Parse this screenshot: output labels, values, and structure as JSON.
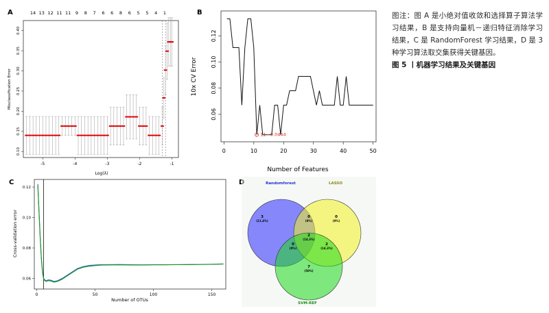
{
  "caption": {
    "text": "图注：图 A 是小绝对值收敛和选择算子算法学习结果，B 是支持向量机－递归特征消除学习结果，C 是 RandomForest 学习结果，D 是 3 种学习算法取交集获得关键基因。",
    "figure_title": "图 5 丨机器学习结果及关键基因"
  },
  "panels": {
    "a": {
      "letter": "A",
      "top_counts": [
        "14",
        "13",
        "12",
        "11",
        "11",
        "9",
        "8",
        "7",
        "6",
        "6",
        "8",
        "6",
        "5",
        "5",
        "4",
        "1"
      ],
      "ylabel": "Misclassification Error",
      "xlabel": "Log(λ)",
      "xticks": [
        "-5",
        "-4",
        "-3",
        "-2",
        "-1"
      ],
      "yticks": [
        "0.10",
        "0.15",
        "0.20",
        "0.25",
        "0.30",
        "0.35",
        "0.40"
      ]
    },
    "b": {
      "letter": "B",
      "ylabel": "10x CV Error",
      "xlabel": "Number of Features",
      "xticks": [
        "0",
        "10",
        "20",
        "30",
        "40",
        "50"
      ],
      "yticks": [
        "0.06",
        "0.08",
        "0.10",
        "0.12"
      ],
      "annotation": "11 - 0.0444"
    },
    "c": {
      "letter": "C",
      "ylabel": "Cross-validation error",
      "xlabel": "Number of OTUs",
      "xticks": [
        "0",
        "50",
        "100",
        "150"
      ],
      "yticks": [
        "0.06",
        "0.08",
        "0.10",
        "0.12"
      ]
    },
    "d": {
      "letter": "D",
      "sets": [
        "Randomforest",
        "LASSO",
        "SVM-REF"
      ],
      "set_colors": [
        "#1f2fd0",
        "#9a9a10",
        "#1aa01a"
      ],
      "regions": [
        {
          "count": "3",
          "pct": "(21.4%)"
        },
        {
          "count": "0",
          "pct": "(0%)"
        },
        {
          "count": "0",
          "pct": "(0%)"
        },
        {
          "count": "2",
          "pct": "(14.3%)"
        },
        {
          "count": "0",
          "pct": "(0%)"
        },
        {
          "count": "2",
          "pct": "(14.3%)"
        },
        {
          "count": "7",
          "pct": "(50%)"
        }
      ]
    }
  },
  "chart_data": [
    {
      "type": "scatter",
      "panel": "A",
      "xlabel": "Log(λ)",
      "ylabel": "Misclassification Error",
      "xlim": [
        -5.6,
        -0.8
      ],
      "ylim": [
        0.085,
        0.425
      ],
      "x": [
        -5.5,
        -5.4,
        -5.3,
        -5.2,
        -5.1,
        -5.0,
        -4.9,
        -4.8,
        -4.7,
        -4.6,
        -4.5,
        -4.4,
        -4.3,
        -4.2,
        -4.1,
        -4.0,
        -3.9,
        -3.8,
        -3.7,
        -3.6,
        -3.5,
        -3.4,
        -3.3,
        -3.2,
        -3.1,
        -3.0,
        -2.9,
        -2.8,
        -2.7,
        -2.6,
        -2.5,
        -2.4,
        -2.3,
        -2.2,
        -2.1,
        -2.0,
        -1.9,
        -1.8,
        -1.7,
        -1.6,
        -1.5,
        -1.4,
        -1.3,
        -1.25,
        -1.2,
        -1.15,
        -1.1,
        -1.05,
        -1.0
      ],
      "y": [
        0.14,
        0.14,
        0.14,
        0.14,
        0.14,
        0.14,
        0.14,
        0.14,
        0.14,
        0.14,
        0.14,
        0.163,
        0.163,
        0.163,
        0.163,
        0.163,
        0.14,
        0.14,
        0.14,
        0.14,
        0.14,
        0.14,
        0.14,
        0.14,
        0.14,
        0.14,
        0.163,
        0.163,
        0.163,
        0.163,
        0.163,
        0.186,
        0.186,
        0.186,
        0.186,
        0.163,
        0.163,
        0.163,
        0.14,
        0.14,
        0.14,
        0.14,
        0.163,
        0.233,
        0.302,
        0.349,
        0.372,
        0.372,
        0.372
      ],
      "err": [
        0.047,
        0.047,
        0.047,
        0.047,
        0.047,
        0.047,
        0.047,
        0.047,
        0.047,
        0.047,
        0.047,
        0.023,
        0.023,
        0.023,
        0.023,
        0.023,
        0.047,
        0.047,
        0.047,
        0.047,
        0.047,
        0.047,
        0.047,
        0.047,
        0.047,
        0.047,
        0.047,
        0.047,
        0.047,
        0.047,
        0.047,
        0.055,
        0.055,
        0.055,
        0.055,
        0.047,
        0.047,
        0.047,
        0.047,
        0.047,
        0.047,
        0.047,
        0.047,
        0.05,
        0.06,
        0.07,
        0.06,
        0.06,
        0.06
      ],
      "vlines": [
        -1.3,
        -1.2
      ]
    },
    {
      "type": "line",
      "panel": "B",
      "xlabel": "Number of Features",
      "ylabel": "10x CV Error",
      "xlim": [
        -1,
        51
      ],
      "ylim": [
        0.039,
        0.139
      ],
      "x": [
        1,
        2,
        3,
        4,
        5,
        6,
        7,
        8,
        9,
        10,
        11,
        12,
        13,
        14,
        15,
        16,
        17,
        18,
        19,
        20,
        21,
        22,
        23,
        24,
        25,
        26,
        27,
        28,
        29,
        30,
        31,
        32,
        33,
        34,
        35,
        36,
        37,
        38,
        39,
        40,
        41,
        42,
        43,
        44,
        45,
        46,
        47,
        48,
        49,
        50
      ],
      "y": [
        0.133,
        0.133,
        0.111,
        0.111,
        0.111,
        0.067,
        0.111,
        0.133,
        0.133,
        0.111,
        0.0444,
        0.067,
        0.0444,
        0.0444,
        0.0444,
        0.0444,
        0.067,
        0.067,
        0.0444,
        0.067,
        0.067,
        0.078,
        0.078,
        0.078,
        0.089,
        0.089,
        0.089,
        0.089,
        0.089,
        0.078,
        0.067,
        0.078,
        0.067,
        0.067,
        0.067,
        0.067,
        0.067,
        0.089,
        0.067,
        0.067,
        0.089,
        0.067,
        0.067,
        0.067,
        0.067,
        0.067,
        0.067,
        0.067,
        0.067,
        0.067
      ],
      "min_point": {
        "x": 11,
        "y": 0.0444
      }
    },
    {
      "type": "line",
      "panel": "C",
      "xlabel": "Number of OTUs",
      "ylabel": "Cross-validation error",
      "xlim": [
        -2,
        162
      ],
      "ylim": [
        0.053,
        0.125
      ],
      "series": [
        {
          "name": "",
          "color": "#2f5fd0",
          "x": [
            1,
            2,
            3,
            4,
            5,
            6,
            7,
            8,
            10,
            12,
            15,
            18,
            22,
            26,
            30,
            35,
            40,
            45,
            50,
            55,
            60,
            70,
            80,
            90,
            100,
            110,
            120,
            130,
            140,
            150,
            160
          ],
          "y": [
            0.122,
            0.105,
            0.088,
            0.074,
            0.065,
            0.06,
            0.059,
            0.0585,
            0.059,
            0.0588,
            0.058,
            0.0585,
            0.06,
            0.062,
            0.064,
            0.0665,
            0.0678,
            0.0685,
            0.0688,
            0.069,
            0.069,
            0.0691,
            0.069,
            0.0689,
            0.069,
            0.069,
            0.069,
            0.0691,
            0.0692,
            0.0693,
            0.0695
          ]
        },
        {
          "name": "",
          "color": "#1a9a1a",
          "x": [
            1,
            2,
            3,
            4,
            5,
            6,
            7,
            8,
            10,
            12,
            15,
            18,
            22,
            26,
            30,
            35,
            40,
            45,
            50,
            55,
            60,
            70,
            80,
            90,
            100,
            110,
            120,
            130,
            140,
            150,
            160
          ],
          "y": [
            0.121,
            0.104,
            0.087,
            0.073,
            0.064,
            0.0595,
            0.0585,
            0.058,
            0.0585,
            0.0583,
            0.0575,
            0.058,
            0.0595,
            0.0615,
            0.0635,
            0.066,
            0.0673,
            0.068,
            0.0684,
            0.0687,
            0.0688,
            0.0689,
            0.0688,
            0.0688,
            0.0689,
            0.0689,
            0.069,
            0.069,
            0.0691,
            0.0692,
            0.0694
          ]
        }
      ],
      "vline": 6
    }
  ]
}
